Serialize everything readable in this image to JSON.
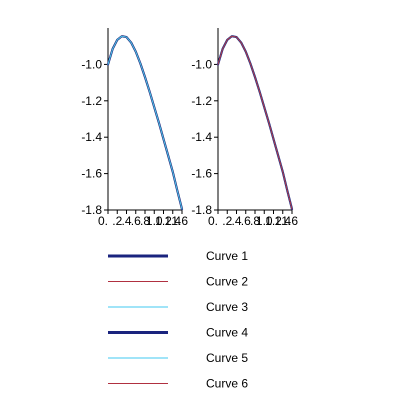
{
  "chart_data": [
    {
      "type": "line",
      "title": "",
      "xlabel": "",
      "ylabel": "",
      "xlim": [
        0,
        1.6
      ],
      "ylim": [
        -1.8,
        -0.8
      ],
      "grid": false,
      "xticks": [
        0,
        0.2,
        0.4,
        0.6,
        0.8,
        1.0,
        1.2,
        1.4,
        1.6
      ],
      "xtick_labels": [
        "0.",
        ".2",
        ".4",
        ".6",
        ".8",
        "1.0",
        "1.2",
        "1.4",
        "1.6"
      ],
      "yticks": [
        -1.8,
        -1.6,
        -1.4,
        -1.2,
        -1.0
      ],
      "ytick_labels": [
        "-1.8",
        "-1.6",
        "-1.4",
        "-1.2",
        "-1.0"
      ],
      "series": [
        {
          "color": "#1a237e",
          "width": 2.2,
          "x": [
            0,
            0.1,
            0.2,
            0.3,
            0.4,
            0.5,
            0.6,
            0.7,
            0.8,
            0.9,
            1.0,
            1.1,
            1.2,
            1.3,
            1.4,
            1.5,
            1.6
          ],
          "y": [
            -1.0,
            -0.915,
            -0.865,
            -0.845,
            -0.85,
            -0.88,
            -0.93,
            -0.995,
            -1.07,
            -1.15,
            -1.235,
            -1.32,
            -1.41,
            -1.5,
            -1.59,
            -1.695,
            -1.795
          ]
        },
        {
          "color": "#b03040",
          "width": 1.0,
          "x": [
            0,
            0.1,
            0.2,
            0.3,
            0.4,
            0.5,
            0.6,
            0.7,
            0.8,
            0.9,
            1.0,
            1.1,
            1.2,
            1.3,
            1.4,
            1.5,
            1.6
          ],
          "y": [
            -1.0,
            -0.915,
            -0.865,
            -0.845,
            -0.85,
            -0.88,
            -0.93,
            -0.995,
            -1.07,
            -1.15,
            -1.235,
            -1.32,
            -1.41,
            -1.5,
            -1.59,
            -1.695,
            -1.795
          ]
        },
        {
          "color": "#40c8f0",
          "width": 1.0,
          "x": [
            0,
            0.1,
            0.2,
            0.3,
            0.4,
            0.5,
            0.6,
            0.7,
            0.8,
            0.9,
            1.0,
            1.1,
            1.2,
            1.3,
            1.4,
            1.5,
            1.6
          ],
          "y": [
            -1.0,
            -0.915,
            -0.865,
            -0.845,
            -0.85,
            -0.88,
            -0.93,
            -0.995,
            -1.07,
            -1.15,
            -1.235,
            -1.32,
            -1.41,
            -1.5,
            -1.59,
            -1.695,
            -1.795
          ]
        }
      ]
    },
    {
      "type": "line",
      "title": "",
      "xlabel": "",
      "ylabel": "",
      "xlim": [
        0,
        1.6
      ],
      "ylim": [
        -1.8,
        -0.8
      ],
      "grid": false,
      "xticks": [
        0,
        0.2,
        0.4,
        0.6,
        0.8,
        1.0,
        1.2,
        1.4,
        1.6
      ],
      "xtick_labels": [
        "0.",
        ".2",
        ".4",
        ".6",
        ".8",
        "1.0",
        "1.2",
        "1.4",
        "1.6"
      ],
      "yticks": [
        -1.8,
        -1.6,
        -1.4,
        -1.2,
        -1.0
      ],
      "ytick_labels": [
        "-1.8",
        "-1.6",
        "-1.4",
        "-1.2",
        "-1.0"
      ],
      "series": [
        {
          "color": "#1a237e",
          "width": 2.2,
          "x": [
            0,
            0.1,
            0.2,
            0.3,
            0.4,
            0.5,
            0.6,
            0.7,
            0.8,
            0.9,
            1.0,
            1.1,
            1.2,
            1.3,
            1.4,
            1.5,
            1.6
          ],
          "y": [
            -1.0,
            -0.915,
            -0.865,
            -0.845,
            -0.85,
            -0.88,
            -0.93,
            -0.995,
            -1.07,
            -1.15,
            -1.235,
            -1.32,
            -1.41,
            -1.5,
            -1.59,
            -1.695,
            -1.795
          ]
        },
        {
          "color": "#40c8f0",
          "width": 1.0,
          "x": [
            0,
            0.1,
            0.2,
            0.3,
            0.4,
            0.5,
            0.6,
            0.7,
            0.8,
            0.9,
            1.0,
            1.1,
            1.2,
            1.3,
            1.4,
            1.5,
            1.6
          ],
          "y": [
            -1.0,
            -0.915,
            -0.865,
            -0.845,
            -0.85,
            -0.88,
            -0.93,
            -0.995,
            -1.07,
            -1.15,
            -1.235,
            -1.32,
            -1.41,
            -1.5,
            -1.59,
            -1.695,
            -1.795
          ]
        },
        {
          "color": "#b03040",
          "width": 1.0,
          "x": [
            0,
            0.1,
            0.2,
            0.3,
            0.4,
            0.5,
            0.6,
            0.7,
            0.8,
            0.9,
            1.0,
            1.1,
            1.2,
            1.3,
            1.4,
            1.5,
            1.6
          ],
          "y": [
            -1.0,
            -0.915,
            -0.865,
            -0.845,
            -0.85,
            -0.88,
            -0.93,
            -0.995,
            -1.07,
            -1.15,
            -1.235,
            -1.32,
            -1.41,
            -1.5,
            -1.59,
            -1.695,
            -1.795
          ]
        }
      ]
    }
  ],
  "legend": {
    "placement": "bottom",
    "entries": [
      {
        "label": "Curve 1",
        "color": "#1a237e",
        "width": 3
      },
      {
        "label": "Curve 2",
        "color": "#b03040",
        "width": 1
      },
      {
        "label": "Curve 3",
        "color": "#40c8f0",
        "width": 1
      },
      {
        "label": "Curve 4",
        "color": "#1a237e",
        "width": 3
      },
      {
        "label": "Curve 5",
        "color": "#40c8f0",
        "width": 1
      },
      {
        "label": "Curve 6",
        "color": "#b03040",
        "width": 1
      }
    ]
  }
}
